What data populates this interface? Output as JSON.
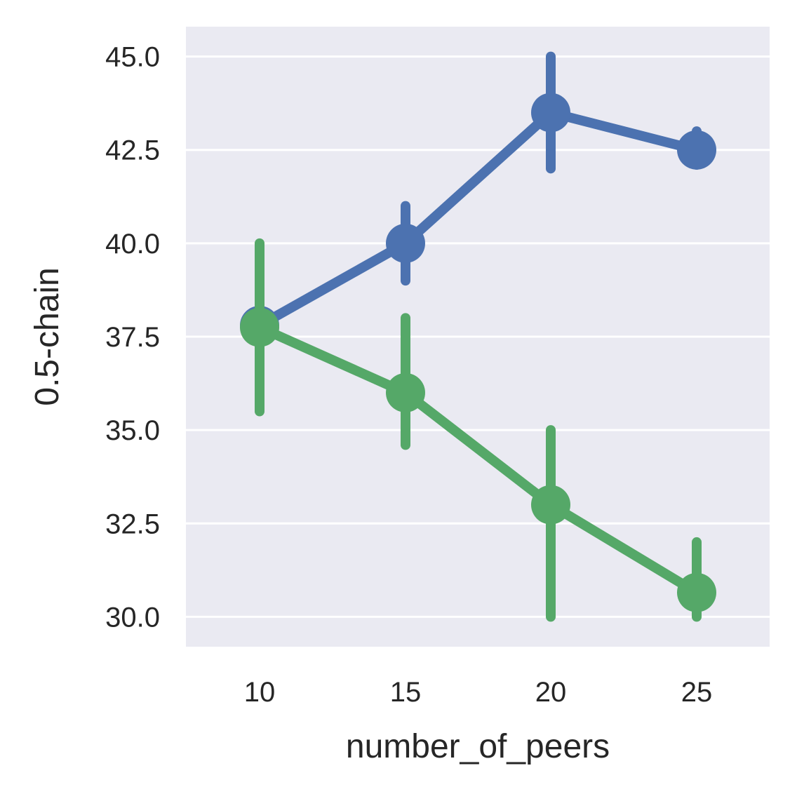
{
  "chart_data": {
    "type": "line",
    "xlabel": "number_of_peers",
    "ylabel": "0.5-chain",
    "x": [
      10,
      15,
      20,
      25
    ],
    "x_tick_labels": [
      "10",
      "15",
      "20",
      "25"
    ],
    "y_ticks": [
      30.0,
      32.5,
      35.0,
      37.5,
      40.0,
      42.5,
      45.0
    ],
    "y_tick_labels": [
      "30.0",
      "32.5",
      "35.0",
      "37.5",
      "40.0",
      "42.5",
      "45.0"
    ],
    "ylim": [
      29.2,
      45.8
    ],
    "grid": true,
    "series": [
      {
        "color": "#4c72b0",
        "values": [
          37.8,
          40.0,
          43.5,
          42.5
        ],
        "error_low": [
          37.8,
          39.0,
          42.0,
          42.1
        ],
        "error_high": [
          37.8,
          41.0,
          45.0,
          43.0
        ]
      },
      {
        "color": "#55a868",
        "values": [
          37.75,
          36.0,
          33.0,
          30.65
        ],
        "error_low": [
          35.5,
          34.6,
          30.0,
          30.0
        ],
        "error_high": [
          40.0,
          38.0,
          35.0,
          32.0
        ]
      }
    ],
    "colors": {
      "plot_background": "#eaeaf2",
      "grid": "#ffffff",
      "text": "#262626"
    }
  }
}
